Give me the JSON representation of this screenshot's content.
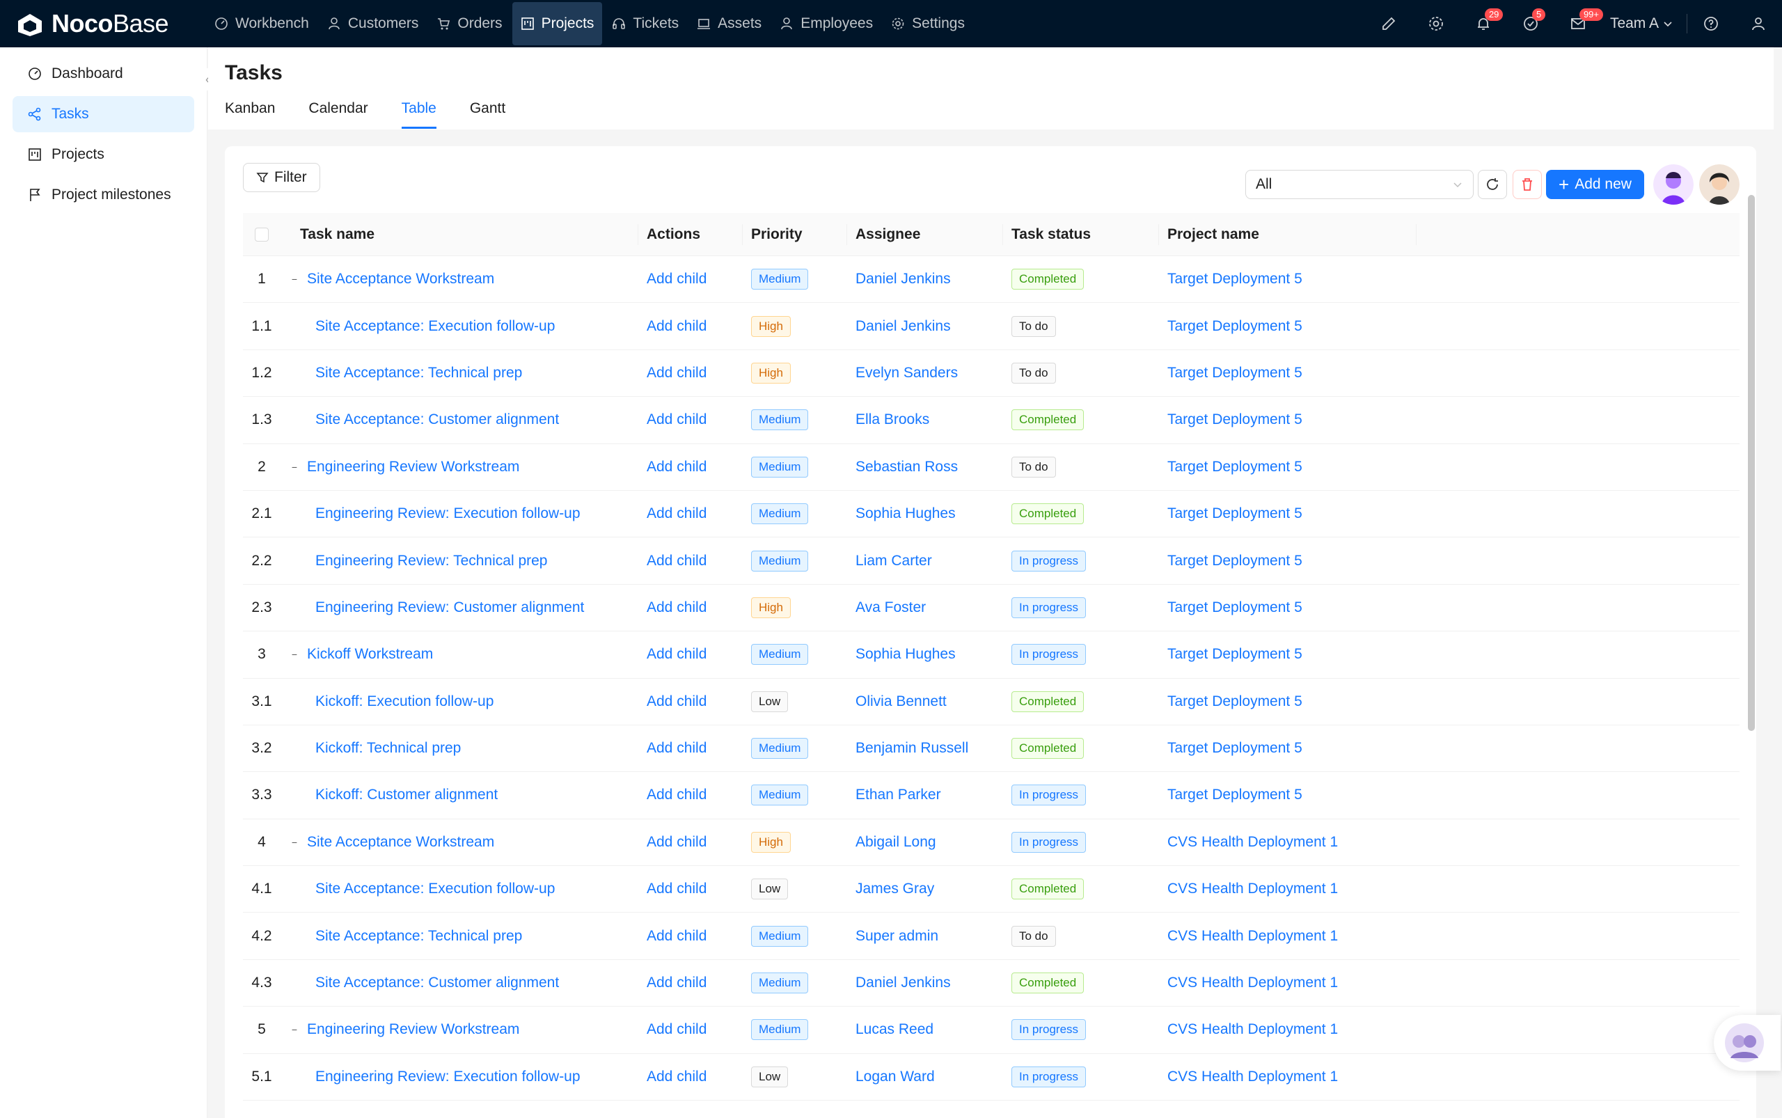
{
  "app": {
    "logo_bold": "Noco",
    "logo_light": "Base"
  },
  "nav": [
    {
      "label": "Workbench",
      "icon": "dashboard-icon"
    },
    {
      "label": "Customers",
      "icon": "user-icon"
    },
    {
      "label": "Orders",
      "icon": "cart-icon"
    },
    {
      "label": "Projects",
      "icon": "project-icon",
      "active": true
    },
    {
      "label": "Tickets",
      "icon": "headset-icon"
    },
    {
      "label": "Assets",
      "icon": "laptop-icon"
    },
    {
      "label": "Employees",
      "icon": "user-icon"
    },
    {
      "label": "Settings",
      "icon": "gear-icon"
    }
  ],
  "top_right": {
    "notifications_badge": "29",
    "tasks_badge": "5",
    "messages_badge": "99+",
    "team_label": "Team A"
  },
  "sidebar": {
    "items": [
      {
        "label": "Dashboard",
        "icon": "dashboard-icon"
      },
      {
        "label": "Tasks",
        "icon": "tasks-icon",
        "active": true
      },
      {
        "label": "Projects",
        "icon": "project-icon"
      },
      {
        "label": "Project milestones",
        "icon": "flag-icon"
      }
    ]
  },
  "page": {
    "title": "Tasks",
    "tabs": [
      "Kanban",
      "Calendar",
      "Table",
      "Gantt"
    ],
    "active_tab": "Table"
  },
  "toolbar": {
    "filter_label": "Filter",
    "select_value": "All",
    "add_label": "Add new"
  },
  "table": {
    "headers": {
      "name": "Task name",
      "actions": "Actions",
      "priority": "Priority",
      "assignee": "Assignee",
      "status": "Task status",
      "project": "Project name"
    },
    "rows": [
      {
        "num": "1",
        "name": "Site Acceptance Workstream",
        "parent": true,
        "action": "Add child",
        "priority": "Medium",
        "assignee": "Daniel Jenkins",
        "status": "Completed",
        "project": "Target Deployment 5"
      },
      {
        "num": "1.1",
        "name": "Site Acceptance: Execution follow-up",
        "parent": false,
        "action": "Add child",
        "priority": "High",
        "assignee": "Daniel Jenkins",
        "status": "To do",
        "project": "Target Deployment 5"
      },
      {
        "num": "1.2",
        "name": "Site Acceptance: Technical prep",
        "parent": false,
        "action": "Add child",
        "priority": "High",
        "assignee": "Evelyn Sanders",
        "status": "To do",
        "project": "Target Deployment 5"
      },
      {
        "num": "1.3",
        "name": "Site Acceptance: Customer alignment",
        "parent": false,
        "action": "Add child",
        "priority": "Medium",
        "assignee": "Ella Brooks",
        "status": "Completed",
        "project": "Target Deployment 5"
      },
      {
        "num": "2",
        "name": "Engineering Review Workstream",
        "parent": true,
        "action": "Add child",
        "priority": "Medium",
        "assignee": "Sebastian Ross",
        "status": "To do",
        "project": "Target Deployment 5"
      },
      {
        "num": "2.1",
        "name": "Engineering Review: Execution follow-up",
        "parent": false,
        "action": "Add child",
        "priority": "Medium",
        "assignee": "Sophia Hughes",
        "status": "Completed",
        "project": "Target Deployment 5"
      },
      {
        "num": "2.2",
        "name": "Engineering Review: Technical prep",
        "parent": false,
        "action": "Add child",
        "priority": "Medium",
        "assignee": "Liam Carter",
        "status": "In progress",
        "project": "Target Deployment 5"
      },
      {
        "num": "2.3",
        "name": "Engineering Review: Customer alignment",
        "parent": false,
        "action": "Add child",
        "priority": "High",
        "assignee": "Ava Foster",
        "status": "In progress",
        "project": "Target Deployment 5"
      },
      {
        "num": "3",
        "name": "Kickoff Workstream",
        "parent": true,
        "action": "Add child",
        "priority": "Medium",
        "assignee": "Sophia Hughes",
        "status": "In progress",
        "project": "Target Deployment 5"
      },
      {
        "num": "3.1",
        "name": "Kickoff: Execution follow-up",
        "parent": false,
        "action": "Add child",
        "priority": "Low",
        "assignee": "Olivia Bennett",
        "status": "Completed",
        "project": "Target Deployment 5"
      },
      {
        "num": "3.2",
        "name": "Kickoff: Technical prep",
        "parent": false,
        "action": "Add child",
        "priority": "Medium",
        "assignee": "Benjamin Russell",
        "status": "Completed",
        "project": "Target Deployment 5"
      },
      {
        "num": "3.3",
        "name": "Kickoff: Customer alignment",
        "parent": false,
        "action": "Add child",
        "priority": "Medium",
        "assignee": "Ethan Parker",
        "status": "In progress",
        "project": "Target Deployment 5"
      },
      {
        "num": "4",
        "name": "Site Acceptance Workstream",
        "parent": true,
        "action": "Add child",
        "priority": "High",
        "assignee": "Abigail Long",
        "status": "In progress",
        "project": "CVS Health Deployment 1"
      },
      {
        "num": "4.1",
        "name": "Site Acceptance: Execution follow-up",
        "parent": false,
        "action": "Add child",
        "priority": "Low",
        "assignee": "James Gray",
        "status": "Completed",
        "project": "CVS Health Deployment 1"
      },
      {
        "num": "4.2",
        "name": "Site Acceptance: Technical prep",
        "parent": false,
        "action": "Add child",
        "priority": "Medium",
        "assignee": "Super admin",
        "status": "To do",
        "project": "CVS Health Deployment 1"
      },
      {
        "num": "4.3",
        "name": "Site Acceptance: Customer alignment",
        "parent": false,
        "action": "Add child",
        "priority": "Medium",
        "assignee": "Daniel Jenkins",
        "status": "Completed",
        "project": "CVS Health Deployment 1"
      },
      {
        "num": "5",
        "name": "Engineering Review Workstream",
        "parent": true,
        "action": "Add child",
        "priority": "Medium",
        "assignee": "Lucas Reed",
        "status": "In progress",
        "project": "CVS Health Deployment 1"
      },
      {
        "num": "5.1",
        "name": "Engineering Review: Execution follow-up",
        "parent": false,
        "action": "Add child",
        "priority": "Low",
        "assignee": "Logan Ward",
        "status": "In progress",
        "project": "CVS Health Deployment 1"
      }
    ]
  },
  "colors": {
    "nav_bg": "#001529",
    "accent": "#1677ff",
    "danger": "#ff4d4f"
  }
}
